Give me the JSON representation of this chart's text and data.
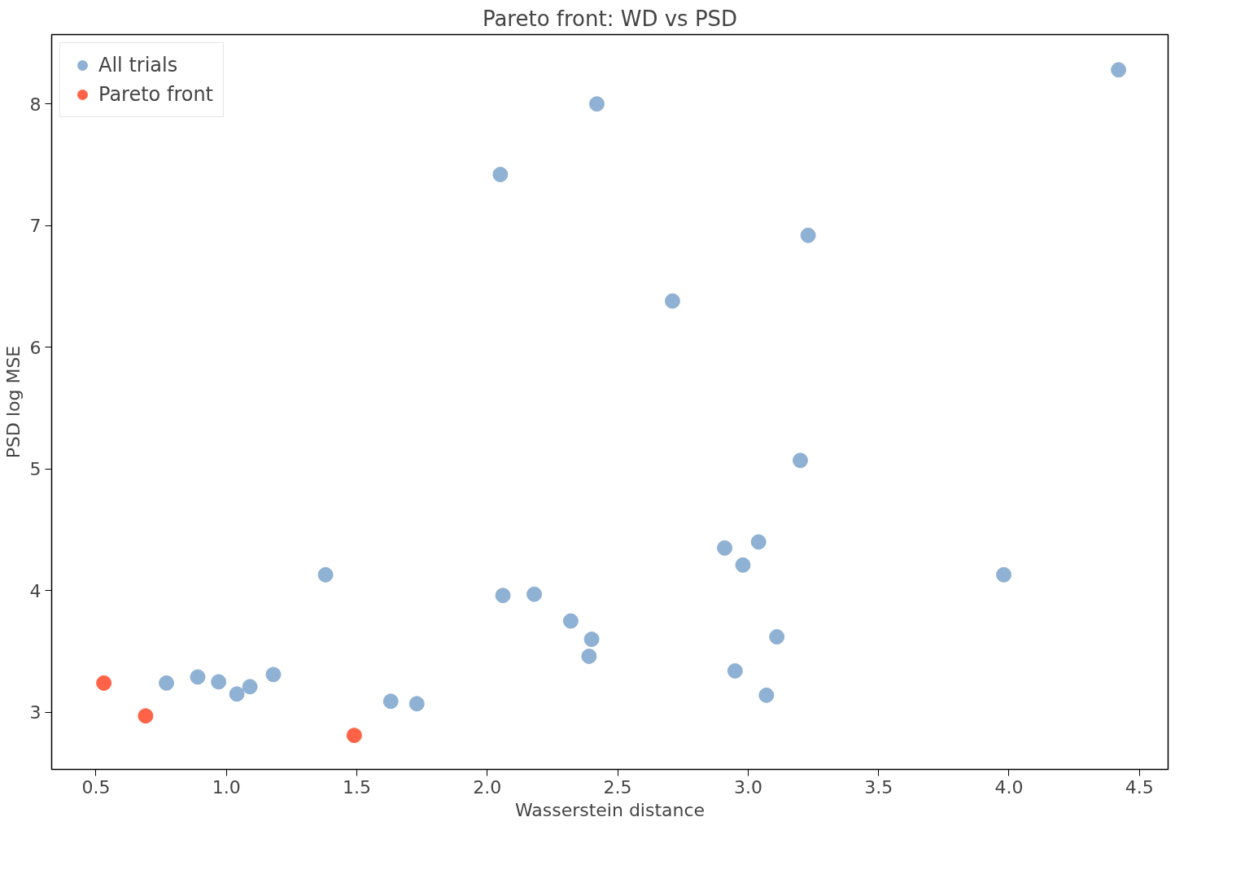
{
  "chart_data": {
    "type": "scatter",
    "title": "Pareto front: WD vs PSD",
    "xlabel": "Wasserstein distance",
    "ylabel": "PSD log MSE",
    "xlim": [
      0.33,
      4.61
    ],
    "ylim": [
      2.53,
      8.57
    ],
    "xticks": [
      {
        "value": 0.5,
        "label": "0.5"
      },
      {
        "value": 1.0,
        "label": "1.0"
      },
      {
        "value": 1.5,
        "label": "1.5"
      },
      {
        "value": 2.0,
        "label": "2.0"
      },
      {
        "value": 2.5,
        "label": "2.5"
      },
      {
        "value": 3.0,
        "label": "3.0"
      },
      {
        "value": 3.5,
        "label": "3.5"
      },
      {
        "value": 4.0,
        "label": "4.0"
      },
      {
        "value": 4.5,
        "label": "4.5"
      }
    ],
    "yticks": [
      3,
      4,
      5,
      6,
      7,
      8
    ],
    "grid": false,
    "legend": "top left",
    "marker": "circle",
    "series": [
      {
        "name": "All trials",
        "color": "#8fb1d3",
        "x": [
          4.42,
          2.42,
          2.05,
          3.23,
          2.71,
          3.2,
          2.91,
          3.04,
          2.98,
          3.98,
          1.38,
          2.06,
          2.18,
          2.32,
          2.4,
          2.39,
          3.11,
          2.95,
          3.07,
          0.77,
          0.89,
          0.97,
          1.04,
          1.09,
          1.18,
          1.63,
          1.73
        ],
        "values": [
          8.28,
          8.0,
          7.42,
          6.92,
          6.38,
          5.07,
          4.35,
          4.4,
          4.21,
          4.13,
          4.13,
          3.96,
          3.97,
          3.75,
          3.6,
          3.46,
          3.62,
          3.34,
          3.14,
          3.24,
          3.29,
          3.25,
          3.15,
          3.21,
          3.31,
          3.09,
          3.07
        ]
      },
      {
        "name": "Pareto front",
        "color": "#ff6347",
        "x": [
          0.53,
          0.69,
          1.49
        ],
        "values": [
          3.24,
          2.97,
          2.81
        ]
      }
    ]
  }
}
